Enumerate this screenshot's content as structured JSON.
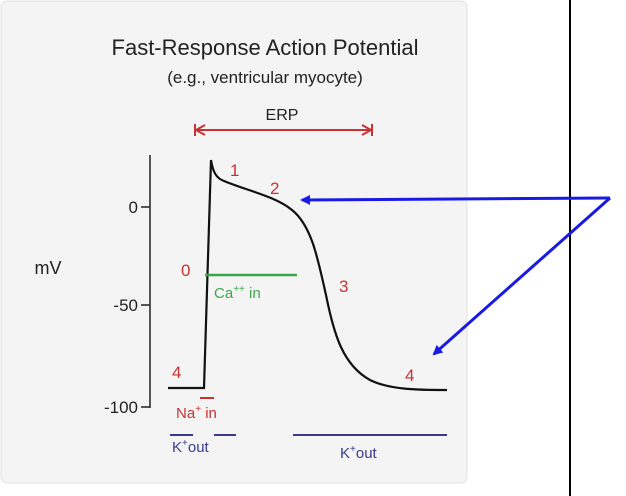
{
  "title": "Fast-Response Action Potential",
  "subtitle": "(e.g., ventricular myocyte)",
  "erp": "ERP",
  "y_axis_label": "mV",
  "y_ticks": [
    "0",
    "-50",
    "-100"
  ],
  "phases": [
    "0",
    "1",
    "2",
    "3",
    "4",
    "4"
  ],
  "currents": {
    "ca_in": {
      "base": "Ca",
      "sup": "++",
      "rest": " in"
    },
    "na_in": {
      "base": "Na",
      "sup": "+",
      "rest": " in"
    },
    "k_out_left": {
      "base": "K",
      "sup": "+",
      "rest": "out"
    },
    "k_out_right": {
      "base": "K",
      "sup": "+",
      "rest": "out"
    }
  }
}
